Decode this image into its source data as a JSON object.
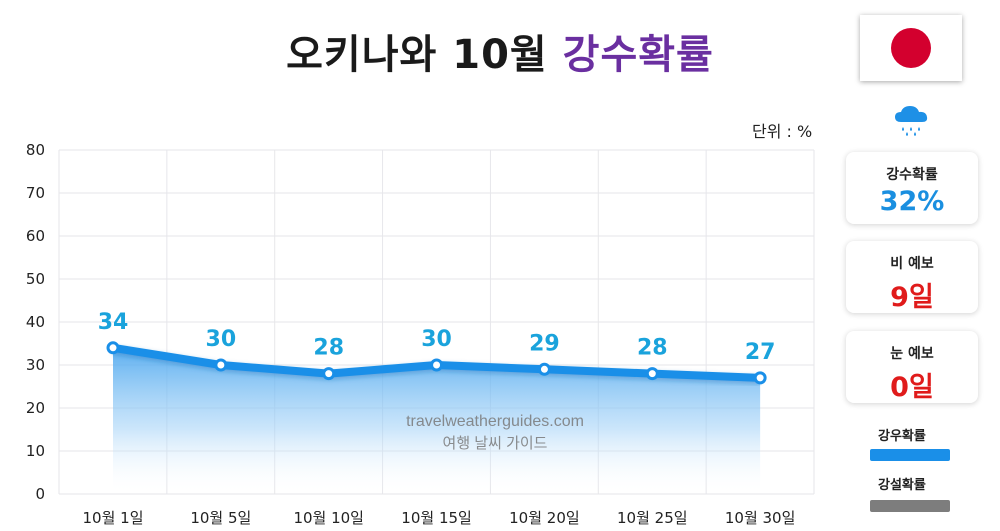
{
  "title": {
    "main": "오키나와 10월",
    "accent": "강수확률"
  },
  "flag": {
    "name": "japan-flag",
    "disc_color": "#d3002e"
  },
  "unit_label": "단위 : %",
  "watermark": {
    "line1": "travelweatherguides.com",
    "line2": "여행 날씨 가이드"
  },
  "side_panel": {
    "icon": "rain-cloud-icon",
    "cards": [
      {
        "label": "강수확률",
        "value": "32%",
        "color": "#1a8fe0"
      },
      {
        "label": "비 예보",
        "value": "9일",
        "color": "#e01b1b"
      },
      {
        "label": "눈 예보",
        "value": "0일",
        "color": "#e01b1b"
      }
    ],
    "legend": [
      {
        "label": "강우확률",
        "color": "#1a8fe8"
      },
      {
        "label": "강설확률",
        "color": "#7d7d7d"
      }
    ]
  },
  "chart_data": {
    "type": "area",
    "categories": [
      "10월 1일",
      "10월 5일",
      "10월 10일",
      "10월 15일",
      "10월 20일",
      "10월 25일",
      "10월 30일"
    ],
    "series": [
      {
        "name": "강우확률",
        "values": [
          34,
          30,
          28,
          30,
          29,
          28,
          27
        ],
        "color": "#1a8fe8"
      }
    ],
    "ylim": [
      0,
      80
    ],
    "yticks": [
      0,
      10,
      20,
      30,
      40,
      50,
      60,
      70,
      80
    ],
    "ylabel": "",
    "xlabel": "",
    "grid": true,
    "data_labels": true,
    "label_color": "#1aa3dc"
  }
}
